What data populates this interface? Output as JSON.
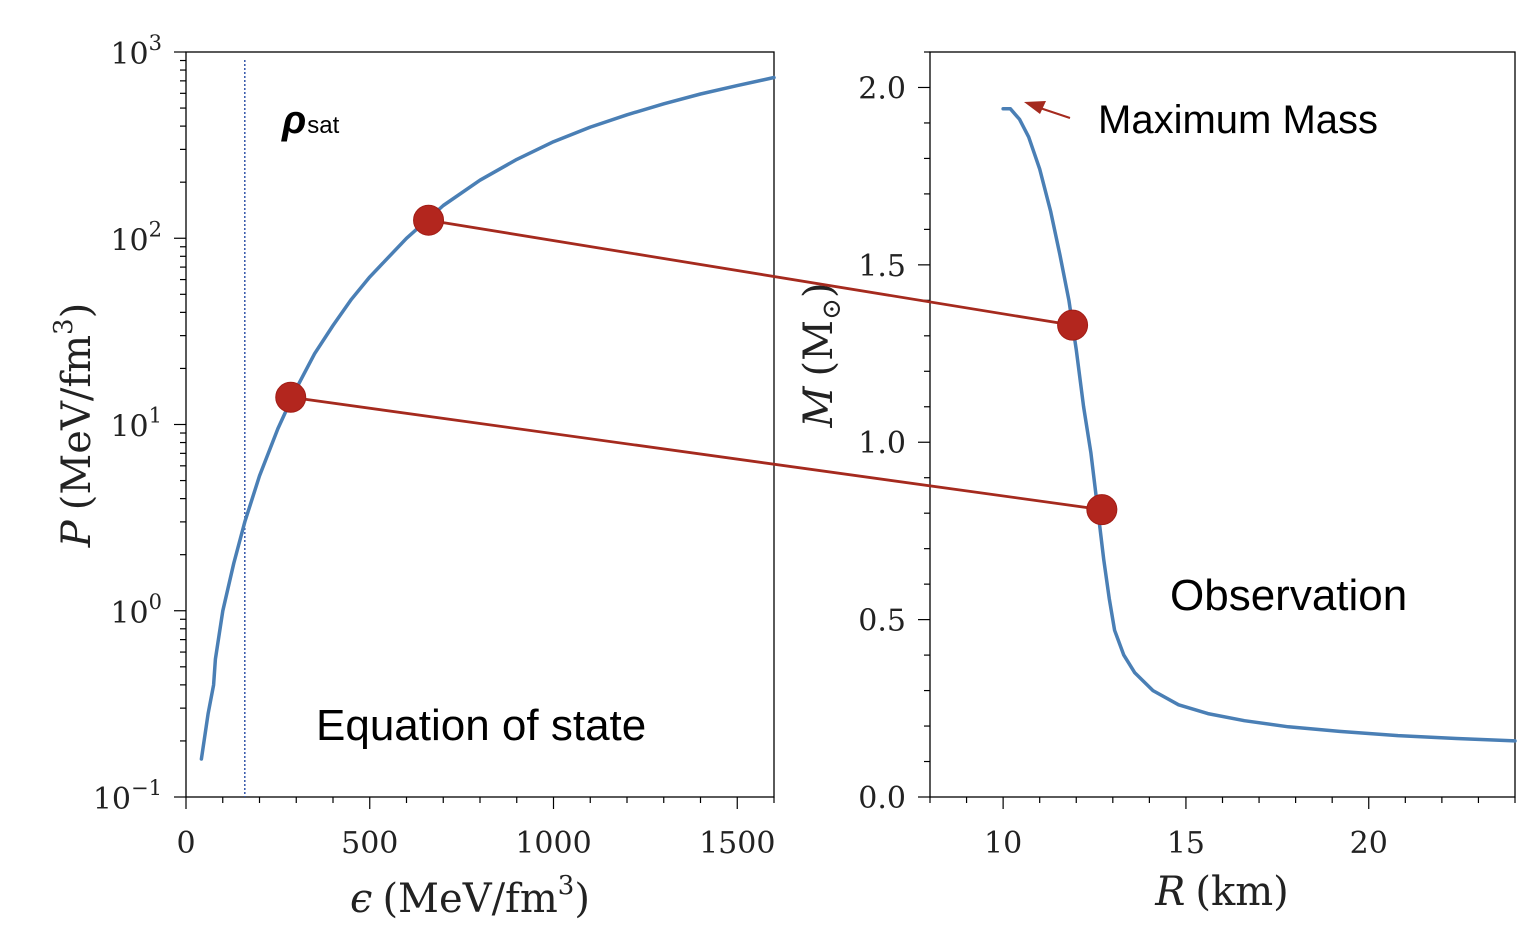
{
  "chart_data": [
    {
      "type": "line",
      "x_range": [
        0,
        1600
      ],
      "y_range": [
        0.1,
        1000
      ],
      "yscale": "log",
      "x_ticks": [
        "0",
        "500",
        "1000",
        "1500"
      ],
      "y_ticks": [
        {
          "base": "10",
          "exp": "−1"
        },
        {
          "base": "10",
          "exp": "0"
        },
        {
          "base": "10",
          "exp": "1"
        },
        {
          "base": "10",
          "exp": "2"
        },
        {
          "base": "10",
          "exp": "3"
        }
      ],
      "xlabel": {
        "symbol": "ϵ",
        "unit": "(MeV/fm",
        "exp": "3",
        "close": ")"
      },
      "ylabel": {
        "symbol": "P",
        "unit": "(MeV/fm",
        "exp": "3",
        "close": ")"
      },
      "series": [
        {
          "x": [
            42,
            60,
            75,
            80,
            100,
            130,
            160,
            200,
            250,
            300,
            350,
            400,
            450,
            500,
            600,
            700,
            800,
            900,
            1000,
            1100,
            1200,
            1300,
            1400,
            1500,
            1600
          ],
          "y": [
            0.16,
            0.28,
            0.4,
            0.55,
            1.0,
            1.8,
            3.0,
            5.3,
            9.5,
            15.6,
            24,
            34,
            47,
            62,
            100,
            150,
            205,
            265,
            330,
            395,
            460,
            527,
            595,
            660,
            730
          ]
        }
      ],
      "vline": {
        "x": 160,
        "label_symbol": "ρ",
        "label_sub": "sat"
      },
      "highlight_points": [
        {
          "x": 660,
          "y": 125
        },
        {
          "x": 285,
          "y": 14
        }
      ],
      "annotation": "Equation of state"
    },
    {
      "type": "line",
      "x_range": [
        8,
        24
      ],
      "y_range": [
        0,
        2.1
      ],
      "x_ticks": [
        "10",
        "15",
        "20"
      ],
      "y_ticks": [
        "0.0",
        "0.5",
        "1.0",
        "1.5",
        "2.0"
      ],
      "xlabel": {
        "symbol": "R",
        "unit": "(km)"
      },
      "ylabel": {
        "symbol": "M",
        "unit": "(M",
        "sub": "⊙",
        "close": ")"
      },
      "series": [
        {
          "x": [
            10.0,
            10.2,
            10.45,
            10.7,
            11.0,
            11.3,
            11.55,
            11.8,
            12.0,
            12.2,
            12.4,
            12.6,
            12.75,
            12.9,
            13.05,
            13.3,
            13.6,
            14.1,
            14.8,
            15.6,
            16.6,
            17.8,
            19.2,
            20.8,
            22.4,
            24.0
          ],
          "y": [
            1.94,
            1.94,
            1.91,
            1.86,
            1.77,
            1.65,
            1.53,
            1.4,
            1.26,
            1.1,
            0.97,
            0.8,
            0.67,
            0.56,
            0.47,
            0.4,
            0.35,
            0.3,
            0.26,
            0.235,
            0.215,
            0.198,
            0.185,
            0.173,
            0.165,
            0.158
          ]
        }
      ],
      "highlight_points": [
        {
          "x": 11.9,
          "y": 1.33
        },
        {
          "x": 12.7,
          "y": 0.81
        }
      ],
      "annotations": {
        "max_mass": "Maximum Mass",
        "observation": "Observation"
      }
    }
  ],
  "colors": {
    "curve": "#4a7fb5",
    "marker": "#b3261e",
    "connector": "#a52a1e",
    "vline": "#3355aa"
  }
}
